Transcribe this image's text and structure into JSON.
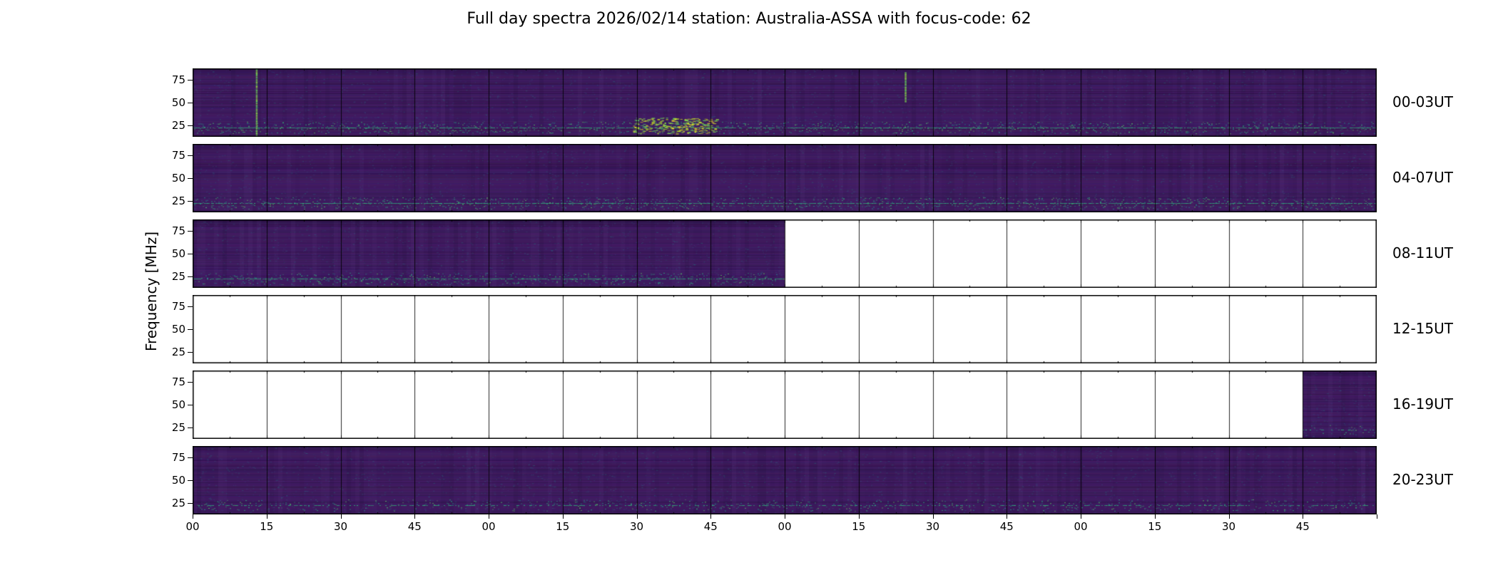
{
  "chart_data": {
    "type": "heatmap",
    "title": "Full day spectra 2026/02/14 station: Australia-ASSA with focus-code: 62",
    "ylabel": "Frequency [MHz]",
    "y_ticks": [
      75,
      50,
      25
    ],
    "y_tick_labels": [
      "75",
      "50",
      "25"
    ],
    "x_tick_labels": [
      "00",
      "15",
      "30",
      "45",
      "00",
      "15",
      "30",
      "45",
      "00",
      "15",
      "30",
      "45",
      "00",
      "15",
      "30",
      "45"
    ],
    "segments_per_row": 16,
    "segment_minutes": 15,
    "colors": {
      "background": "#ffffff",
      "spectrogram_base": "#41246b",
      "speckle_teal": "#21918c",
      "rfi_band_green": "#2fb47c",
      "burst_yellow": "#d8e219",
      "axis": "#000000"
    },
    "rows": [
      {
        "label": "00-03UT",
        "fill_ranges": [
          [
            0,
            1
          ]
        ],
        "band_strength": 1.0,
        "features": [
          {
            "type": "vline",
            "x": 0.054,
            "y0": 0.0,
            "y1": 1.0
          },
          {
            "type": "vline",
            "x": 0.602,
            "y0": 0.05,
            "y1": 0.5
          },
          {
            "type": "burst",
            "x0": 0.372,
            "x1": 0.442,
            "y0": 0.72,
            "y1": 0.95
          }
        ]
      },
      {
        "label": "04-07UT",
        "fill_ranges": [
          [
            0,
            1
          ]
        ],
        "band_strength": 1.0,
        "features": []
      },
      {
        "label": "08-11UT",
        "fill_ranges": [
          [
            0,
            0.5
          ]
        ],
        "band_strength": 0.9,
        "features": []
      },
      {
        "label": "12-15UT",
        "fill_ranges": [],
        "band_strength": 0,
        "features": []
      },
      {
        "label": "16-19UT",
        "fill_ranges": [
          [
            0.9375,
            1
          ]
        ],
        "band_strength": 0.35,
        "features": []
      },
      {
        "label": "20-23UT",
        "fill_ranges": [
          [
            0,
            1
          ]
        ],
        "band_strength": 0.55,
        "features": []
      }
    ]
  }
}
